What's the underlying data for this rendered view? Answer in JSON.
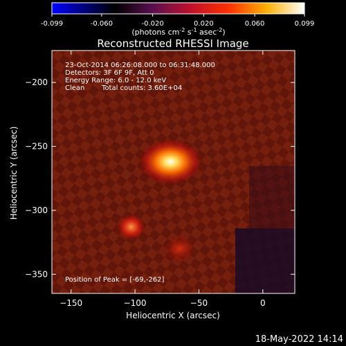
{
  "chart_data": {
    "type": "heatmap",
    "title": "Reconstructed RHESSI Image",
    "colorbar": {
      "min": -0.099,
      "max": 0.099,
      "ticks": [
        "-0.099",
        "-0.060",
        "-0.020",
        "0.020",
        "0.060",
        "0.099"
      ],
      "tick_values": [
        -0.099,
        -0.06,
        -0.02,
        0.02,
        0.06,
        0.099
      ],
      "unit_prefix": "(photons cm",
      "unit_sup1": "-2",
      "unit_mid": " s",
      "unit_sup2": "-1",
      "unit_mid2": " asec",
      "unit_sup3": "-2",
      "unit_suffix": ")",
      "colormap": "red-temperature (blue-black-purple-red-orange-yellow-white)"
    },
    "xlabel": "Heliocentric X (arcsec)",
    "ylabel": "Heliocentric Y (arcsec)",
    "xlim": [
      -165,
      25
    ],
    "ylim": [
      -365,
      -175
    ],
    "x_ticks": [
      -150,
      -100,
      -50,
      0
    ],
    "x_tick_labels": [
      "−150",
      "−100",
      "−50",
      "0"
    ],
    "y_ticks": [
      -200,
      -250,
      -300,
      -350
    ],
    "y_tick_labels": [
      "−200",
      "−250",
      "−300",
      "−350"
    ],
    "info_lines": [
      "23-Oct-2014 06:26:08.000 to 06:31:48.000",
      "Detectors: 3F 6F 9F, Att 0",
      "Energy Range: 6.0 - 12.0 keV"
    ],
    "clean_label": "Clean",
    "total_counts": "Total counts: 3.60E+04",
    "peak_label": "Position of Peak = [-69,-262]",
    "sources": [
      {
        "x": -69,
        "y": -262,
        "peak": 0.099
      },
      {
        "x": -103,
        "y": -313,
        "peak": 0.055
      },
      {
        "x": -65,
        "y": -330,
        "peak": 0.045
      }
    ],
    "timestamp": "18-May-2022 14:14"
  }
}
